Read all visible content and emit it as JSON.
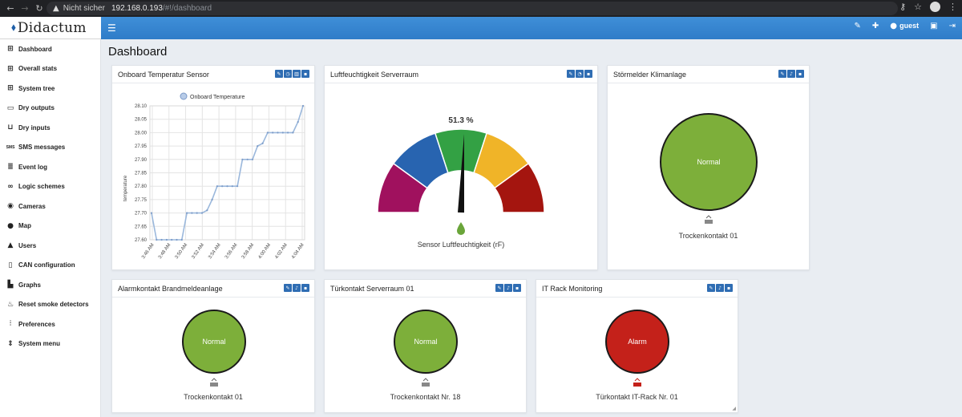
{
  "browser": {
    "security_label": "Nicht sicher",
    "url_host": "192.168.0.193",
    "url_path": "/#!/dashboard"
  },
  "app": {
    "logo_text": "Didactum",
    "user_label": "guest",
    "accent": "#2f7cc8"
  },
  "sidebar": {
    "items": [
      {
        "label": "Dashboard",
        "icon": "grid-icon"
      },
      {
        "label": "Overall stats",
        "icon": "grid-icon"
      },
      {
        "label": "System tree",
        "icon": "grid-icon"
      },
      {
        "label": "Dry outputs",
        "icon": "folder-icon"
      },
      {
        "label": "Dry inputs",
        "icon": "inbox-icon"
      },
      {
        "label": "SMS messages",
        "icon": "sms-icon"
      },
      {
        "label": "Event log",
        "icon": "list-icon"
      },
      {
        "label": "Logic schemes",
        "icon": "link-icon"
      },
      {
        "label": "Cameras",
        "icon": "camera-icon"
      },
      {
        "label": "Map",
        "icon": "map-marker-icon"
      },
      {
        "label": "Users",
        "icon": "user-icon"
      },
      {
        "label": "CAN configuration",
        "icon": "device-icon"
      },
      {
        "label": "Graphs",
        "icon": "bar-chart-icon"
      },
      {
        "label": "Reset smoke detectors",
        "icon": "fire-icon"
      },
      {
        "label": "Preferences",
        "icon": "sliders-icon"
      },
      {
        "label": "System menu",
        "icon": "sort-icon"
      }
    ]
  },
  "page": {
    "title": "Dashboard"
  },
  "cards": {
    "temp": {
      "title": "Onboard Temperatur Sensor"
    },
    "humidity": {
      "title": "Luftfeuchtigkeit Serverraum",
      "value_text": "51.3 %",
      "label": "Sensor Luftfeuchtigkeit (rF)"
    },
    "stoer": {
      "title": "Störmelder Klimanlage",
      "status": "Normal",
      "contact": "Trockenkontakt 01"
    },
    "alarm": {
      "title": "Alarmkontakt Brandmeldeanlage",
      "status": "Normal",
      "contact": "Trockenkontakt 01"
    },
    "tuer": {
      "title": "Türkontakt Serverraum 01",
      "status": "Normal",
      "contact": "Trockenkontakt Nr. 18"
    },
    "rack": {
      "title": "IT Rack Monitoring",
      "status": "Alarm",
      "contact": "Türkontakt IT-Rack Nr. 01"
    }
  },
  "chart_data": [
    {
      "type": "line",
      "series": [
        {
          "name": "Onboard Temperature",
          "values": [
            27.7,
            27.6,
            27.6,
            27.6,
            27.6,
            27.6,
            27.6,
            27.7,
            27.7,
            27.7,
            27.7,
            27.71,
            27.75,
            27.8,
            27.8,
            27.8,
            27.8,
            27.8,
            27.9,
            27.9,
            27.9,
            27.95,
            27.96,
            28.0,
            28.0,
            28.0,
            28.0,
            28.0,
            28.0,
            28.04,
            28.1
          ]
        }
      ],
      "x_ticks": [
        "3:46 AM",
        "3:48 AM",
        "3:50 AM",
        "3:52 AM",
        "3:54 AM",
        "3:56 AM",
        "3:58 AM",
        "4:00 AM",
        "4:02 AM",
        "4:04 AM"
      ],
      "ylabel": "temperature",
      "ylim": [
        27.6,
        28.1
      ],
      "yticks": [
        "27.60",
        "27.65",
        "27.70",
        "27.75",
        "27.80",
        "27.85",
        "27.90",
        "27.95",
        "28.00",
        "28.05",
        "28.10"
      ],
      "grid": true,
      "legend": "top-center",
      "line_color": "#9bb8dc"
    },
    {
      "type": "gauge",
      "value": 51.3,
      "range": [
        0,
        100
      ],
      "band_colors": [
        "#a0115e",
        "#2864b0",
        "#33a144",
        "#f0b428",
        "#a4150f"
      ]
    }
  ]
}
